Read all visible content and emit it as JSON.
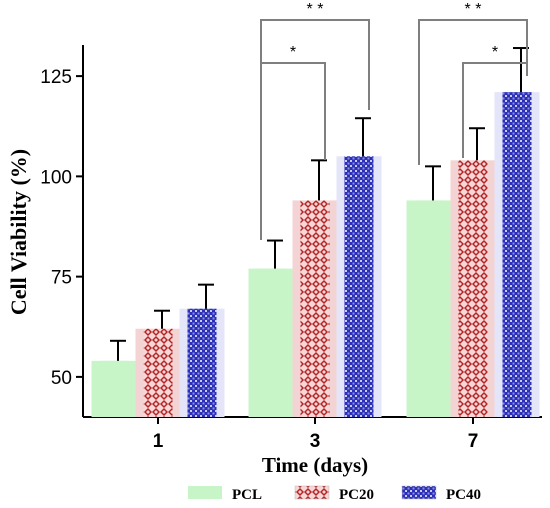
{
  "chart_data": {
    "type": "bar",
    "xlabel": "Time (days)",
    "ylabel": "Cell Viability (%)",
    "categories": [
      "1",
      "3",
      "7"
    ],
    "y_ticks": [
      50,
      75,
      100,
      125
    ],
    "ylim": [
      40,
      135
    ],
    "grid": false,
    "legend_position": "bottom",
    "series": [
      {
        "name": "PCL",
        "values": [
          54,
          77,
          94
        ],
        "errors": [
          5,
          7,
          8.5
        ],
        "color": "#c8f5c8",
        "pattern": "solid"
      },
      {
        "name": "PC20",
        "values": [
          62,
          94,
          104
        ],
        "errors": [
          4.5,
          10,
          8
        ],
        "color": "#b22222",
        "pattern": "diamond-lattice"
      },
      {
        "name": "PC40",
        "values": [
          67,
          105,
          121
        ],
        "errors": [
          6,
          9.5,
          11
        ],
        "color": "#2b2fb8",
        "pattern": "dense-hatch"
      }
    ],
    "significance": [
      {
        "category": "3",
        "from": "PCL",
        "to": "PC20",
        "label": "*"
      },
      {
        "category": "3",
        "from": "PCL",
        "to": "PC40",
        "label": "* *"
      },
      {
        "category": "7",
        "from": "PC20",
        "to": "PC40",
        "label": "*"
      },
      {
        "category": "7",
        "from": "PCL",
        "to": "PC40",
        "label": "* *"
      }
    ]
  }
}
